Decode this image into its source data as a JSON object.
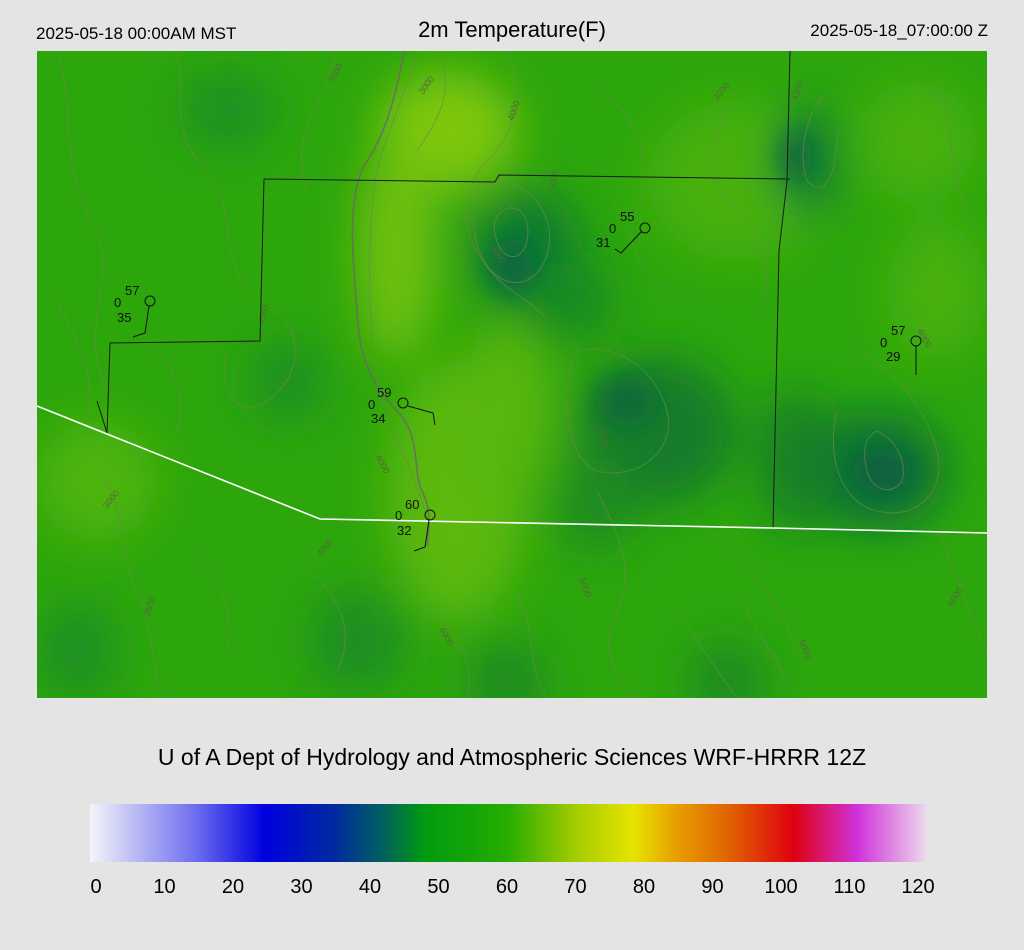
{
  "header": {
    "local_time": "2025-05-18 00:00AM MST",
    "title": "2m Temperature(F)",
    "utc_time": "2025-05-18_07:00:00 Z"
  },
  "credit": "U of A Dept of Hydrology and Atmospheric Sciences WRF-HRRR 12Z",
  "colorbar": {
    "min": 0,
    "max": 120,
    "tick_labels": [
      "0",
      "10",
      "20",
      "30",
      "40",
      "50",
      "60",
      "70",
      "80",
      "90",
      "100",
      "110",
      "120"
    ],
    "stops": [
      {
        "v": 0,
        "c": "#f4f4f8"
      },
      {
        "v": 15,
        "c": "#6f6ff0"
      },
      {
        "v": 25,
        "c": "#0000e0"
      },
      {
        "v": 35,
        "c": "#002aa0"
      },
      {
        "v": 42,
        "c": "#006060"
      },
      {
        "v": 48,
        "c": "#009a10"
      },
      {
        "v": 60,
        "c": "#26ad00"
      },
      {
        "v": 70,
        "c": "#a8cc00"
      },
      {
        "v": 78,
        "c": "#e6e400"
      },
      {
        "v": 84,
        "c": "#e8a000"
      },
      {
        "v": 92,
        "c": "#e06000"
      },
      {
        "v": 101,
        "c": "#e00010"
      },
      {
        "v": 110,
        "c": "#d030d8"
      },
      {
        "v": 120,
        "c": "#ecd8ec"
      }
    ]
  },
  "map": {
    "base_color": "#2da60c",
    "stations": [
      {
        "temp": "55",
        "left": "0",
        "dew": "31"
      },
      {
        "temp": "57",
        "left": "0",
        "dew": "35"
      },
      {
        "temp": "59",
        "left": "0",
        "dew": "34"
      },
      {
        "temp": "60",
        "left": "0",
        "dew": "32"
      },
      {
        "temp": "57",
        "left": "0",
        "dew": "29"
      }
    ],
    "contour_labels": [
      "3500",
      "3000",
      "4000",
      "5000",
      "4000",
      "4000",
      "3000",
      "4500",
      "4000",
      "4000",
      "4000",
      "5000",
      "3000",
      "3500",
      "6000",
      "4000",
      "5000",
      "5000"
    ]
  }
}
